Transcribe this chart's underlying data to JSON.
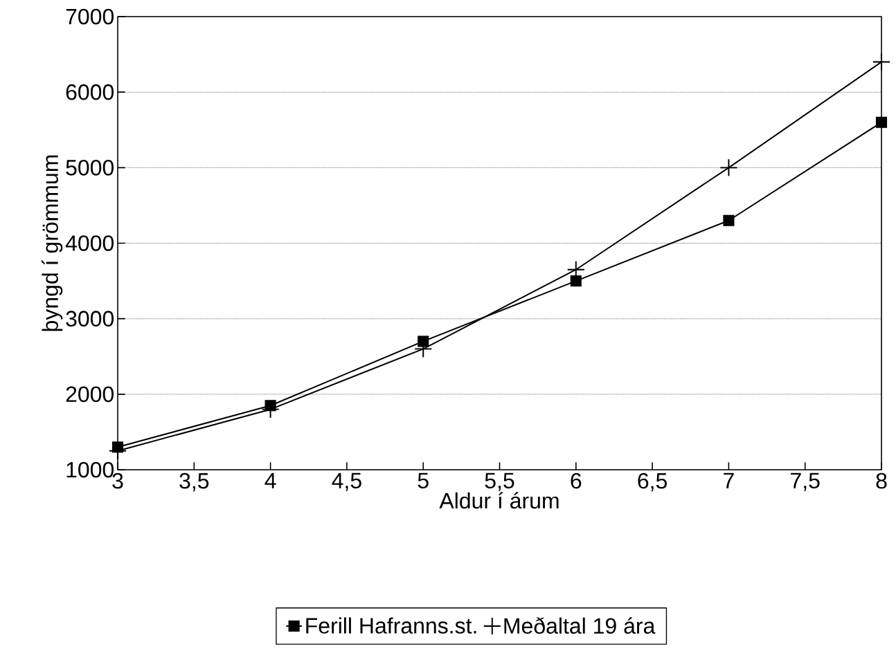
{
  "chart_data": {
    "type": "line",
    "xlabel": "Aldur í árum",
    "ylabel": "þyngd í grömmum",
    "x": [
      3,
      4,
      5,
      6,
      7,
      8
    ],
    "series": [
      {
        "name": "Ferill Hafranns.st.",
        "color": "#000000",
        "marker": "square",
        "values": [
          1300,
          1850,
          2700,
          3500,
          4300,
          5600
        ]
      },
      {
        "name": "Meðaltal 19 ára",
        "color": "#000000",
        "marker": "cross",
        "values": [
          1250,
          1800,
          2600,
          3650,
          5000,
          6400
        ]
      }
    ],
    "xlim": [
      3,
      8
    ],
    "xticks": [
      3,
      {
        "value": 3.5,
        "label": "3,5"
      },
      4,
      {
        "value": 4.5,
        "label": "4,5"
      },
      5,
      {
        "value": 5.5,
        "label": "5,5"
      },
      6,
      {
        "value": 6.5,
        "label": "6,5"
      },
      7,
      {
        "value": 7.5,
        "label": "7,5"
      },
      8
    ],
    "ylim": [
      1000,
      7000
    ],
    "yticks": [
      1000,
      2000,
      3000,
      4000,
      5000,
      6000,
      7000
    ],
    "grid": "y",
    "legend": "bottom",
    "line_style": "solid"
  }
}
